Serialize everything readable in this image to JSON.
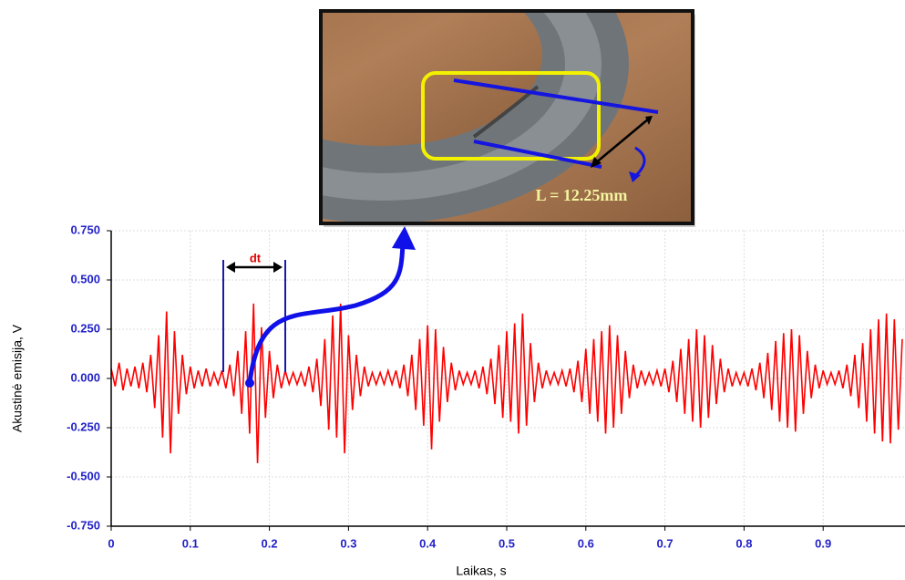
{
  "chart_data": {
    "type": "line",
    "xlabel": "Laikas, s",
    "ylabel": "Akustinė emisija, V",
    "annotations": {
      "interval": "dt",
      "length": "L = 12.25mm"
    },
    "xlim": [
      0,
      1
    ],
    "ylim": [
      -0.75,
      0.75
    ],
    "xticks": [
      0,
      0.1,
      0.2,
      0.3,
      0.4,
      0.5,
      0.6,
      0.7,
      0.8,
      0.9
    ],
    "yticks": [
      {
        "value": 0.75,
        "label": "0.750"
      },
      {
        "value": 0.5,
        "label": "0.500"
      },
      {
        "value": 0.25,
        "label": "0.250"
      },
      {
        "value": 0,
        "label": "0.000"
      },
      {
        "value": -0.25,
        "label": "-0.250"
      },
      {
        "value": -0.5,
        "label": "-0.500"
      },
      {
        "value": -0.75,
        "label": "-0.750"
      }
    ],
    "grid": true,
    "x": [
      0,
      0.005,
      0.01,
      0.015,
      0.02,
      0.025,
      0.03,
      0.035,
      0.04,
      0.045,
      0.05,
      0.055,
      0.06,
      0.065,
      0.07,
      0.075,
      0.08,
      0.085,
      0.09,
      0.095,
      0.1,
      0.105,
      0.11,
      0.115,
      0.12,
      0.125,
      0.13,
      0.135,
      0.14,
      0.145,
      0.15,
      0.155,
      0.16,
      0.165,
      0.17,
      0.175,
      0.18,
      0.185,
      0.19,
      0.195,
      0.2,
      0.205,
      0.21,
      0.215,
      0.22,
      0.225,
      0.23,
      0.235,
      0.24,
      0.245,
      0.25,
      0.255,
      0.26,
      0.265,
      0.27,
      0.275,
      0.28,
      0.285,
      0.29,
      0.295,
      0.3,
      0.305,
      0.31,
      0.315,
      0.32,
      0.325,
      0.33,
      0.335,
      0.34,
      0.345,
      0.35,
      0.355,
      0.36,
      0.365,
      0.37,
      0.375,
      0.38,
      0.385,
      0.39,
      0.395,
      0.4,
      0.405,
      0.41,
      0.415,
      0.42,
      0.425,
      0.43,
      0.435,
      0.44,
      0.445,
      0.45,
      0.455,
      0.46,
      0.465,
      0.47,
      0.475,
      0.48,
      0.485,
      0.49,
      0.495,
      0.5,
      0.505,
      0.51,
      0.515,
      0.52,
      0.525,
      0.53,
      0.535,
      0.54,
      0.545,
      0.55,
      0.555,
      0.56,
      0.565,
      0.57,
      0.575,
      0.58,
      0.585,
      0.59,
      0.595,
      0.6,
      0.605,
      0.61,
      0.615,
      0.62,
      0.625,
      0.63,
      0.635,
      0.64,
      0.645,
      0.65,
      0.655,
      0.66,
      0.665,
      0.67,
      0.675,
      0.68,
      0.685,
      0.69,
      0.695,
      0.7,
      0.705,
      0.71,
      0.715,
      0.72,
      0.725,
      0.73,
      0.735,
      0.74,
      0.745,
      0.75,
      0.755,
      0.76,
      0.765,
      0.77,
      0.775,
      0.78,
      0.785,
      0.79,
      0.795,
      0.8,
      0.805,
      0.81,
      0.815,
      0.82,
      0.825,
      0.83,
      0.835,
      0.84,
      0.845,
      0.85,
      0.855,
      0.86,
      0.865,
      0.87,
      0.875,
      0.88,
      0.885,
      0.89,
      0.895,
      0.9,
      0.905,
      0.91,
      0.915,
      0.92,
      0.925,
      0.93,
      0.935,
      0.94,
      0.945,
      0.95,
      0.955,
      0.96,
      0.965,
      0.97,
      0.975,
      0.98,
      0.985,
      0.99,
      0.995,
      1
    ],
    "series": [
      {
        "color": "#ff0000",
        "values": [
          0.05,
          -0.04,
          0.08,
          -0.06,
          0.05,
          -0.04,
          0.06,
          -0.05,
          0.08,
          -0.07,
          0.12,
          -0.15,
          0.22,
          -0.3,
          0.34,
          -0.38,
          0.24,
          -0.18,
          0.12,
          -0.08,
          0.06,
          -0.05,
          0.04,
          -0.04,
          0.05,
          -0.04,
          0.03,
          -0.03,
          0.04,
          -0.05,
          0.07,
          -0.09,
          0.14,
          -0.18,
          0.24,
          -0.28,
          0.38,
          -0.43,
          0.26,
          -0.2,
          0.14,
          -0.1,
          0.07,
          -0.05,
          0.04,
          -0.03,
          0.03,
          -0.03,
          0.03,
          -0.04,
          0.06,
          -0.07,
          0.1,
          -0.14,
          0.2,
          -0.26,
          0.32,
          -0.3,
          0.38,
          -0.38,
          0.22,
          -0.16,
          0.12,
          -0.09,
          0.06,
          -0.04,
          0.03,
          -0.03,
          0.03,
          -0.03,
          0.04,
          -0.03,
          0.04,
          -0.05,
          0.07,
          -0.09,
          0.12,
          -0.16,
          0.2,
          -0.24,
          0.27,
          -0.36,
          0.25,
          -0.22,
          0.16,
          -0.12,
          0.08,
          -0.06,
          0.04,
          -0.03,
          0.03,
          -0.03,
          0.04,
          -0.05,
          0.06,
          -0.08,
          0.1,
          -0.13,
          0.17,
          -0.2,
          0.24,
          -0.22,
          0.28,
          -0.28,
          0.33,
          -0.24,
          0.18,
          -0.12,
          0.08,
          -0.05,
          0.04,
          -0.03,
          0.03,
          -0.03,
          0.04,
          -0.04,
          0.05,
          -0.07,
          0.09,
          -0.12,
          0.15,
          -0.18,
          0.2,
          -0.22,
          0.24,
          -0.28,
          0.27,
          -0.25,
          0.22,
          -0.18,
          0.14,
          -0.1,
          0.07,
          -0.05,
          0.04,
          -0.03,
          0.03,
          -0.03,
          0.04,
          -0.04,
          0.05,
          -0.07,
          0.09,
          -0.12,
          0.15,
          -0.18,
          0.2,
          -0.22,
          0.25,
          -0.25,
          0.22,
          -0.2,
          0.17,
          -0.13,
          0.1,
          -0.07,
          0.05,
          -0.04,
          0.03,
          -0.03,
          0.03,
          -0.04,
          0.05,
          -0.06,
          0.08,
          -0.1,
          0.13,
          -0.16,
          0.19,
          -0.22,
          0.23,
          -0.25,
          0.25,
          -0.27,
          0.22,
          -0.18,
          0.14,
          -0.1,
          0.07,
          -0.05,
          0.04,
          -0.03,
          0.03,
          -0.03,
          0.04,
          -0.05,
          0.07,
          -0.09,
          0.12,
          -0.15,
          0.18,
          -0.22,
          0.25,
          -0.28,
          0.3,
          -0.32,
          0.33,
          -0.33,
          0.3,
          -0.26,
          0.2
        ]
      }
    ]
  }
}
